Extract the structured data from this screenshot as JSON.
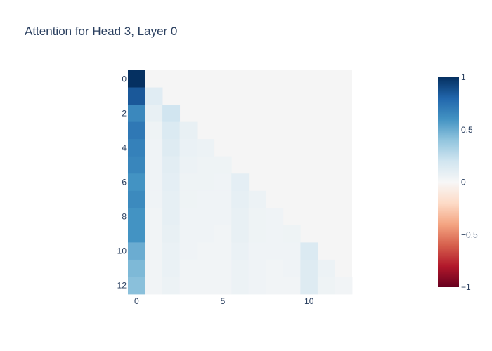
{
  "chart_data": {
    "type": "heatmap",
    "title": "Attention for Head 3, Layer 0",
    "xlabel": "",
    "ylabel": "",
    "x_ticks": [
      0,
      5,
      10
    ],
    "y_ticks": [
      0,
      2,
      4,
      6,
      8,
      10,
      12
    ],
    "x_range": [
      -0.5,
      12.5
    ],
    "y_range": [
      -0.5,
      12.5
    ],
    "y_reversed": true,
    "colorscale": "RdBu",
    "zmin": -1,
    "zmax": 1,
    "colorbar_ticks": [
      1,
      0.5,
      0,
      -0.5,
      -1
    ],
    "colorbar_tick_labels": [
      "1",
      "0.5",
      "0",
      "−0.5",
      "−1"
    ],
    "z": [
      [
        1.0,
        null,
        null,
        null,
        null,
        null,
        null,
        null,
        null,
        null,
        null,
        null,
        null
      ],
      [
        0.85,
        0.12,
        null,
        null,
        null,
        null,
        null,
        null,
        null,
        null,
        null,
        null,
        null
      ],
      [
        0.65,
        0.08,
        0.2,
        null,
        null,
        null,
        null,
        null,
        null,
        null,
        null,
        null,
        null
      ],
      [
        0.72,
        0.05,
        0.15,
        0.08,
        null,
        null,
        null,
        null,
        null,
        null,
        null,
        null,
        null
      ],
      [
        0.68,
        0.04,
        0.13,
        0.07,
        0.06,
        null,
        null,
        null,
        null,
        null,
        null,
        null,
        null
      ],
      [
        0.66,
        0.04,
        0.11,
        0.06,
        0.05,
        0.05,
        null,
        null,
        null,
        null,
        null,
        null,
        null
      ],
      [
        0.6,
        0.04,
        0.1,
        0.05,
        0.05,
        0.04,
        0.1,
        null,
        null,
        null,
        null,
        null,
        null
      ],
      [
        0.64,
        0.04,
        0.09,
        0.05,
        0.04,
        0.04,
        0.09,
        0.06,
        null,
        null,
        null,
        null,
        null
      ],
      [
        0.6,
        0.03,
        0.09,
        0.04,
        0.04,
        0.04,
        0.08,
        0.05,
        0.04,
        null,
        null,
        null,
        null
      ],
      [
        0.6,
        0.03,
        0.08,
        0.04,
        0.04,
        0.03,
        0.08,
        0.05,
        0.04,
        0.05,
        null,
        null,
        null
      ],
      [
        0.5,
        0.03,
        0.07,
        0.04,
        0.03,
        0.03,
        0.07,
        0.04,
        0.04,
        0.04,
        0.15,
        null,
        null
      ],
      [
        0.45,
        0.03,
        0.07,
        0.03,
        0.03,
        0.03,
        0.06,
        0.04,
        0.03,
        0.04,
        0.13,
        0.06,
        null
      ],
      [
        0.42,
        0.03,
        0.06,
        0.03,
        0.03,
        0.03,
        0.06,
        0.04,
        0.03,
        0.03,
        0.13,
        0.05,
        0.03
      ]
    ]
  }
}
